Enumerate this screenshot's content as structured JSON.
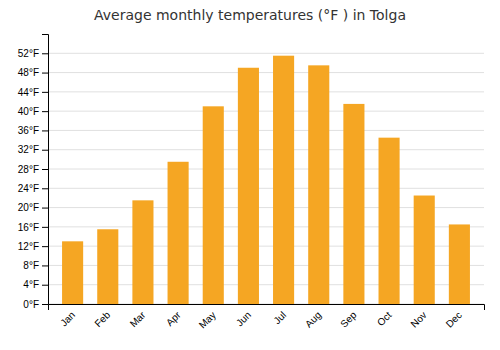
{
  "chart_data": {
    "type": "bar",
    "title": "Average monthly temperatures (°F ) in Tolga",
    "categories": [
      "Jan",
      "Feb",
      "Mar",
      "Apr",
      "May",
      "Jun",
      "Jul",
      "Aug",
      "Sep",
      "Oct",
      "Nov",
      "Dec"
    ],
    "values": [
      13.0,
      15.5,
      21.5,
      29.5,
      41.0,
      49.0,
      51.5,
      49.5,
      41.5,
      34.5,
      22.5,
      16.5
    ],
    "color": "#F5A623",
    "ylim": [
      0,
      56
    ],
    "yticks": [
      {
        "value": 0,
        "label": "0°F"
      },
      {
        "value": 4,
        "label": "4°F"
      },
      {
        "value": 8,
        "label": "8°F"
      },
      {
        "value": 12,
        "label": "12°F"
      },
      {
        "value": 16,
        "label": "16°F"
      },
      {
        "value": 20,
        "label": "20°F"
      },
      {
        "value": 24,
        "label": "24°F"
      },
      {
        "value": 28,
        "label": "28°F"
      },
      {
        "value": 32,
        "label": "32°F"
      },
      {
        "value": 36,
        "label": "36°F"
      },
      {
        "value": 40,
        "label": "40°F"
      },
      {
        "value": 44,
        "label": "44°F"
      },
      {
        "value": 48,
        "label": "48°F"
      },
      {
        "value": 52,
        "label": "52°F"
      }
    ],
    "grid": true
  }
}
